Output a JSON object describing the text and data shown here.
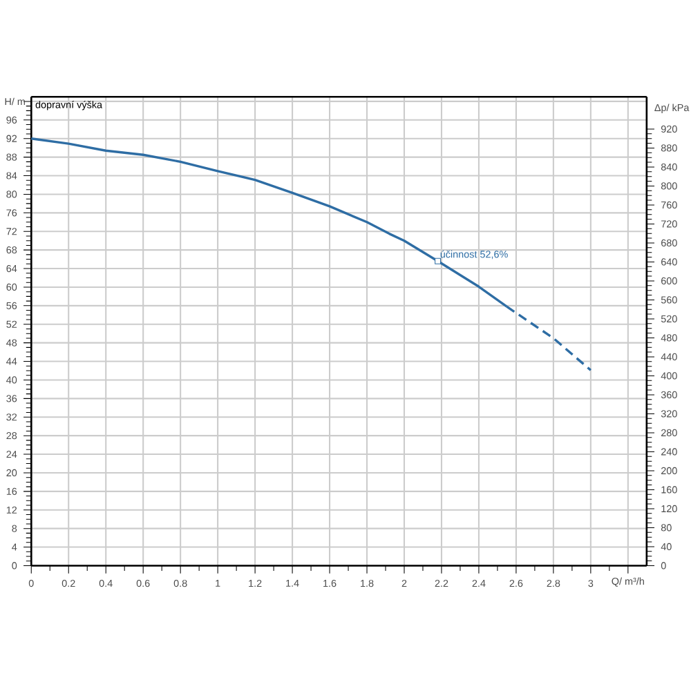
{
  "chart_data": {
    "type": "line",
    "xlabel": "Q/ m³/h",
    "ylabel": "H/ m",
    "y2label": "Δp/ kPa",
    "annotations": [
      "dopravní výška",
      {
        "text": "účinnost 52,6%",
        "x": 2.18,
        "y": 65.6
      }
    ],
    "series": [
      {
        "color": "#2e6da4",
        "line_style": "solid",
        "x": [
          0,
          0.2,
          0.4,
          0.6,
          0.8,
          1.0,
          1.2,
          1.4,
          1.6,
          1.8,
          1.92,
          2.0,
          2.18,
          2.4,
          2.55
        ],
        "values": [
          92,
          90.9,
          89.4,
          88.5,
          87.0,
          85.0,
          83.1,
          80.3,
          77.4,
          74.0,
          71.5,
          70.0,
          65.6,
          60.1,
          55.8
        ]
      },
      {
        "color": "#2e6da4",
        "line_style": "dashed",
        "x": [
          2.55,
          2.8,
          3.0
        ],
        "values": [
          55.8,
          49.0,
          42.1
        ]
      }
    ],
    "xlim": [
      0,
      3.3
    ],
    "xticks": [
      0,
      0.2,
      0.4,
      0.6,
      0.8,
      1,
      1.2,
      1.4,
      1.6,
      1.8,
      2,
      2.2,
      2.4,
      2.6,
      2.8,
      3,
      {
        "value": 3.2,
        "label": null
      }
    ],
    "ylim": [
      0,
      101
    ],
    "yticks": [
      0,
      4,
      8,
      12,
      16,
      20,
      24,
      28,
      32,
      36,
      40,
      44,
      48,
      52,
      56,
      60,
      64,
      68,
      72,
      76,
      80,
      84,
      88,
      92,
      96,
      {
        "value": 100,
        "label": null
      }
    ],
    "y2lim": [
      0,
      988
    ],
    "y2ticks": [
      0,
      40,
      80,
      120,
      160,
      200,
      240,
      280,
      320,
      360,
      400,
      440,
      480,
      520,
      560,
      600,
      640,
      680,
      720,
      760,
      800,
      840,
      880,
      920
    ],
    "grid": true
  }
}
